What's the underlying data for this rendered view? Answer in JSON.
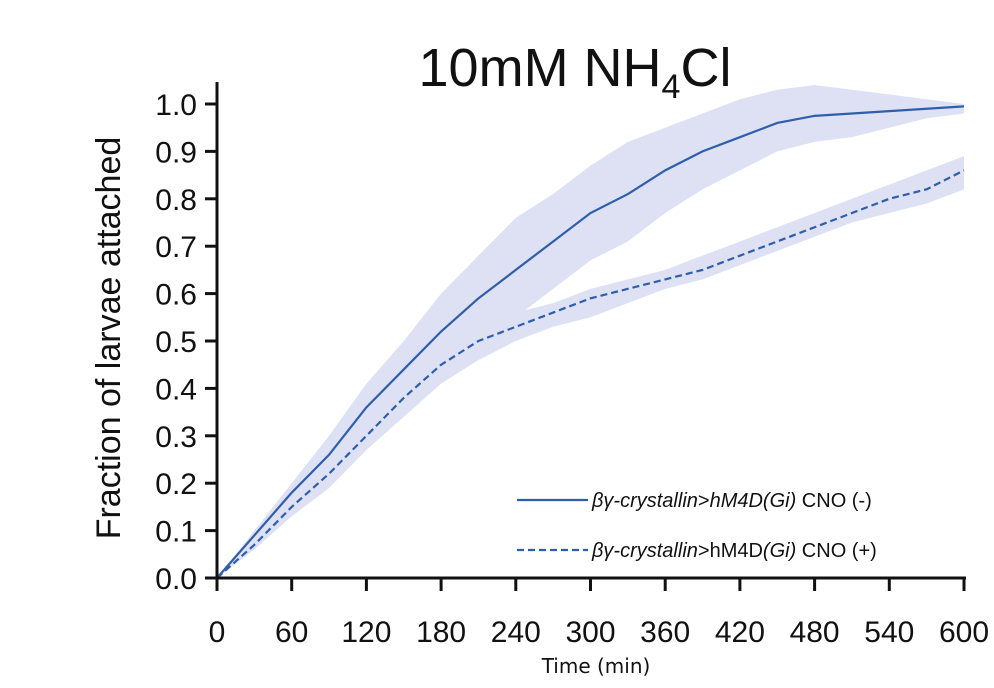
{
  "chart_data": {
    "type": "line",
    "title": {
      "prefix": "10mM NH",
      "subscript": "4",
      "suffix": "Cl"
    },
    "xlabel": "Time (min)",
    "ylabel": "Fraction of larvae attached",
    "xlim": [
      0,
      600
    ],
    "ylim": [
      0,
      1.0
    ],
    "x_ticks": [
      "0",
      "60",
      "120",
      "180",
      "240",
      "300",
      "360",
      "420",
      "480",
      "540",
      "600"
    ],
    "y_ticks": [
      "0.0",
      "0.1",
      "0.2",
      "0.3",
      "0.4",
      "0.5",
      "0.6",
      "0.7",
      "0.8",
      "0.9",
      "1.0"
    ],
    "grid": false,
    "legend_position": "bottom-right",
    "colors": {
      "line": "#2f5eaa",
      "band": "#dde1f3"
    },
    "x": [
      0,
      30,
      60,
      90,
      120,
      150,
      180,
      210,
      240,
      270,
      300,
      330,
      360,
      390,
      420,
      450,
      480,
      510,
      540,
      570,
      600
    ],
    "series": [
      {
        "legend_parts": [
          {
            "text": "βγ-crystallin",
            "italic": true
          },
          {
            "text": ">",
            "italic": false
          },
          {
            "text": "hM4D(Gi)",
            "italic": true
          },
          {
            "text": " CNO (-)",
            "italic": false
          }
        ],
        "style": "solid",
        "values": [
          0,
          0.09,
          0.18,
          0.26,
          0.36,
          0.44,
          0.52,
          0.59,
          0.65,
          0.71,
          0.77,
          0.81,
          0.86,
          0.9,
          0.93,
          0.96,
          0.975,
          0.98,
          0.985,
          0.99,
          0.995
        ],
        "upper": [
          0,
          0.1,
          0.2,
          0.3,
          0.41,
          0.5,
          0.6,
          0.68,
          0.76,
          0.81,
          0.87,
          0.92,
          0.95,
          0.98,
          1.01,
          1.03,
          1.04,
          1.03,
          1.02,
          1.01,
          1.0
        ],
        "lower": [
          0,
          0.08,
          0.16,
          0.22,
          0.31,
          0.38,
          0.44,
          0.5,
          0.55,
          0.61,
          0.67,
          0.71,
          0.77,
          0.82,
          0.86,
          0.9,
          0.92,
          0.93,
          0.95,
          0.97,
          0.98
        ]
      },
      {
        "legend_parts": [
          {
            "text": "βγ-crystallin",
            "italic": true
          },
          {
            "text": ">hM4D",
            "italic": false
          },
          {
            "text": "(Gi)",
            "italic": true
          },
          {
            "text": " CNO (+)",
            "italic": false
          }
        ],
        "style": "dashed",
        "values": [
          0,
          0.07,
          0.15,
          0.22,
          0.3,
          0.38,
          0.45,
          0.5,
          0.53,
          0.56,
          0.59,
          0.61,
          0.63,
          0.65,
          0.68,
          0.71,
          0.74,
          0.77,
          0.8,
          0.82,
          0.86
        ],
        "upper": [
          0,
          0.08,
          0.17,
          0.25,
          0.33,
          0.41,
          0.47,
          0.52,
          0.56,
          0.58,
          0.61,
          0.63,
          0.65,
          0.68,
          0.71,
          0.74,
          0.77,
          0.8,
          0.83,
          0.86,
          0.89
        ],
        "lower": [
          0,
          0.06,
          0.13,
          0.19,
          0.27,
          0.34,
          0.41,
          0.46,
          0.5,
          0.53,
          0.55,
          0.58,
          0.61,
          0.63,
          0.66,
          0.69,
          0.72,
          0.75,
          0.77,
          0.79,
          0.82
        ]
      }
    ]
  }
}
